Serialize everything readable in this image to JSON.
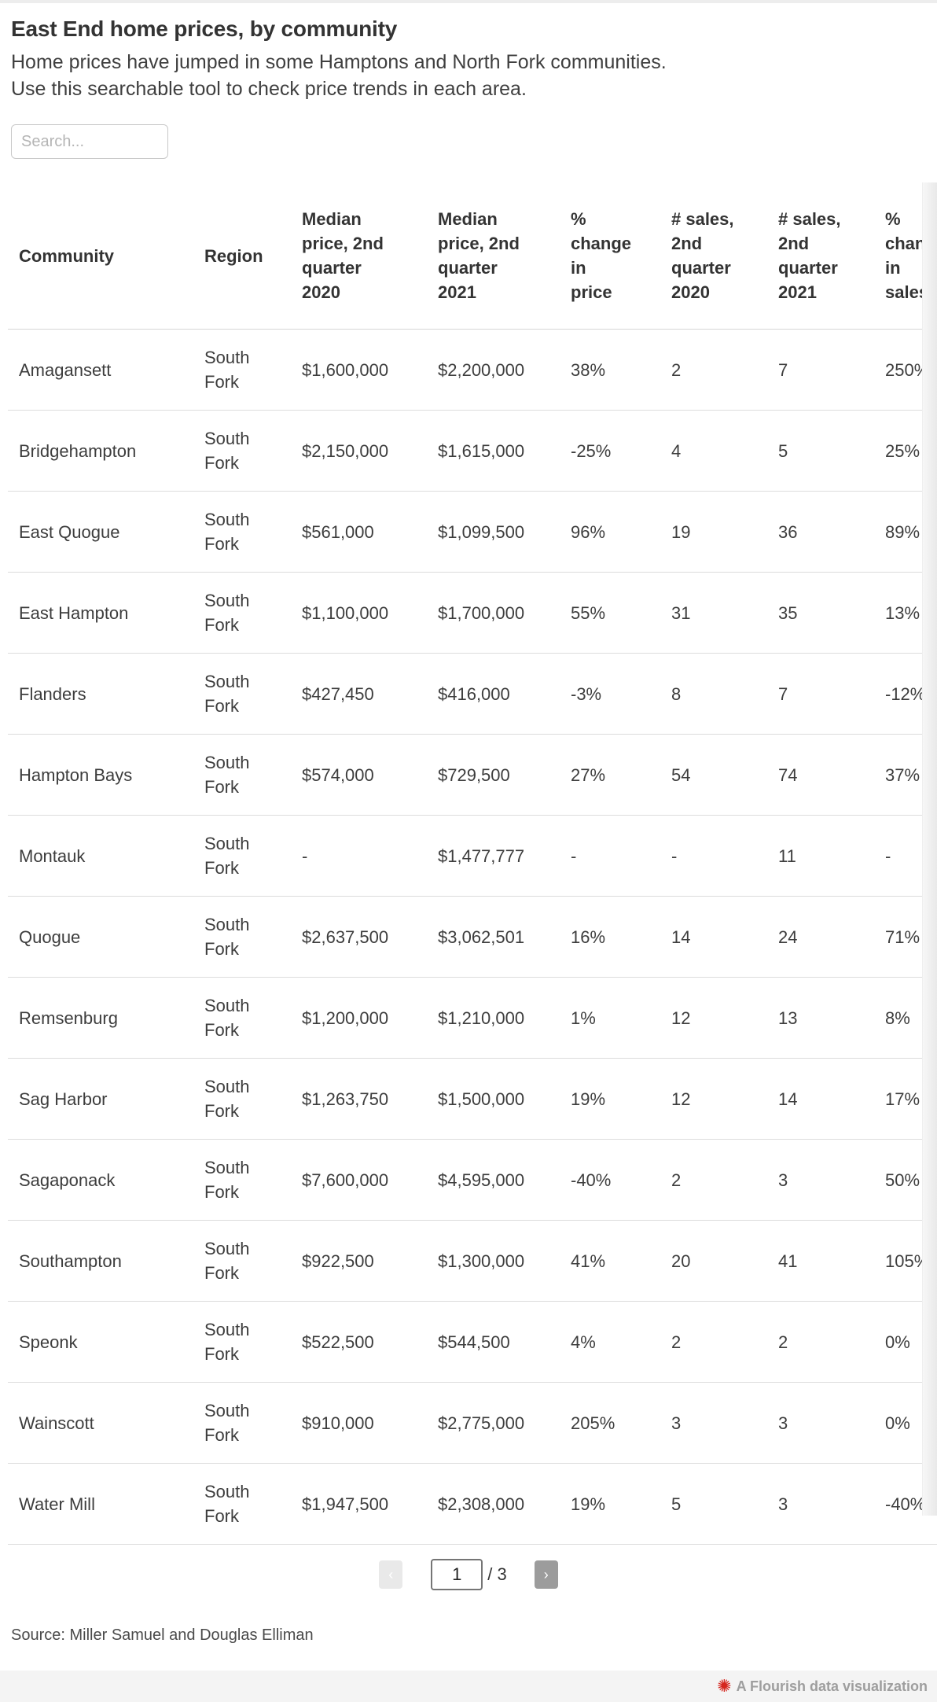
{
  "header": {
    "title": "East End home prices, by community",
    "subtitle": "Home prices have jumped in some Hamptons and North Fork communities.\nUse this searchable tool to check price trends in each area."
  },
  "search": {
    "placeholder": "Search..."
  },
  "chart_data": {
    "type": "table",
    "title": "East End home prices, by community",
    "columns": [
      "Community",
      "Region",
      "Median\nprice, 2nd\nquarter\n2020",
      "Median\nprice, 2nd\nquarter\n2021",
      "%\nchange\nin\nprice",
      "# sales,\n2nd\nquarter\n2020",
      "# sales,\n2nd\nquarter\n2021",
      "%\nchange\nin\nsales"
    ],
    "rows": [
      [
        "Amagansett",
        "South Fork",
        "$1,600,000",
        "$2,200,000",
        "38%",
        "2",
        "7",
        "250%"
      ],
      [
        "Bridgehampton",
        "South Fork",
        "$2,150,000",
        "$1,615,000",
        "-25%",
        "4",
        "5",
        "25%"
      ],
      [
        "East Quogue",
        "South Fork",
        "$561,000",
        "$1,099,500",
        "96%",
        "19",
        "36",
        "89%"
      ],
      [
        "East Hampton",
        "South Fork",
        "$1,100,000",
        "$1,700,000",
        "55%",
        "31",
        "35",
        "13%"
      ],
      [
        "Flanders",
        "South Fork",
        "$427,450",
        "$416,000",
        "-3%",
        "8",
        "7",
        "-12%"
      ],
      [
        "Hampton Bays",
        "South Fork",
        "$574,000",
        "$729,500",
        "27%",
        "54",
        "74",
        "37%"
      ],
      [
        "Montauk",
        "South Fork",
        "-",
        "$1,477,777",
        "-",
        "-",
        "11",
        "-"
      ],
      [
        "Quogue",
        "South Fork",
        "$2,637,500",
        "$3,062,501",
        "16%",
        "14",
        "24",
        "71%"
      ],
      [
        "Remsenburg",
        "South Fork",
        "$1,200,000",
        "$1,210,000",
        "1%",
        "12",
        "13",
        "8%"
      ],
      [
        "Sag Harbor",
        "South Fork",
        "$1,263,750",
        "$1,500,000",
        "19%",
        "12",
        "14",
        "17%"
      ],
      [
        "Sagaponack",
        "South Fork",
        "$7,600,000",
        "$4,595,000",
        "-40%",
        "2",
        "3",
        "50%"
      ],
      [
        "Southampton",
        "South Fork",
        "$922,500",
        "$1,300,000",
        "41%",
        "20",
        "41",
        "105%"
      ],
      [
        "Speonk",
        "South Fork",
        "$522,500",
        "$544,500",
        "4%",
        "2",
        "2",
        "0%"
      ],
      [
        "Wainscott",
        "South Fork",
        "$910,000",
        "$2,775,000",
        "205%",
        "3",
        "3",
        "0%"
      ],
      [
        "Water Mill",
        "South Fork",
        "$1,947,500",
        "$2,308,000",
        "19%",
        "5",
        "3",
        "-40%"
      ]
    ]
  },
  "pagination": {
    "prev_icon": "‹",
    "page_value": "1",
    "total_label": "/ 3",
    "next_icon": "›"
  },
  "footer": {
    "source": "Source: Miller Samuel and Douglas Elliman"
  },
  "attribution": {
    "icon": "✺",
    "label": "A Flourish data visualization"
  },
  "colors": {
    "accent_red": "#d5271f",
    "row_divider": "#dcdcdc",
    "next_button_bg": "#9c9c9c",
    "prev_button_bg": "#e9e9e9",
    "attribution_bar_bg": "#f4f4f4"
  }
}
